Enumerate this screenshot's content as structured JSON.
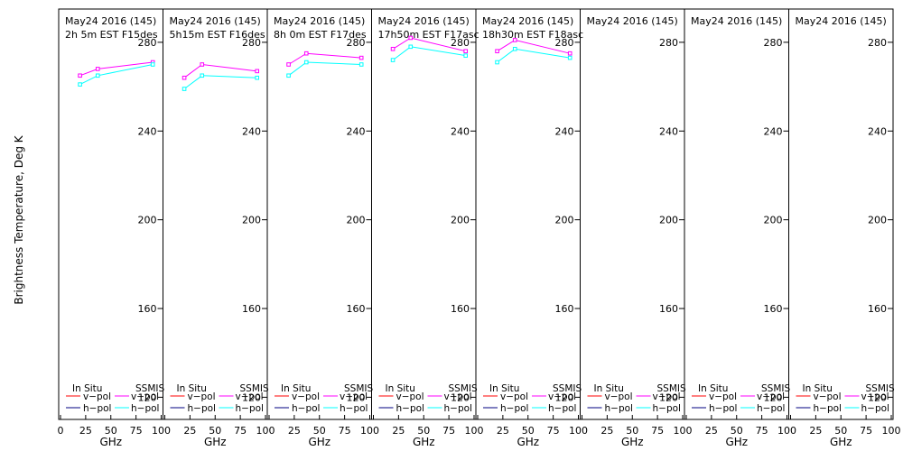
{
  "y_axis_label": "Brightness Temperature, Deg K",
  "chart_data": {
    "type": "line",
    "ylabel": "Brightness Temperature, Deg K",
    "xlabel": "GHz",
    "ylim": [
      110,
      295
    ],
    "xlim": [
      0,
      100
    ],
    "y_ticks": [
      120,
      160,
      200,
      240,
      280
    ],
    "x_ticks": [
      0,
      25,
      50,
      75,
      100
    ],
    "y_tick_labels": [
      "120",
      "160",
      "200",
      "240",
      "280"
    ],
    "x_tick_labels": [
      "0",
      "25",
      "50",
      "75",
      "100"
    ],
    "x_tick_labels_inner": [
      "25",
      "50",
      "75",
      "100"
    ],
    "grid": false,
    "legend": {
      "group_in_situ": "In Situ",
      "group_ssmis": "SSMIS",
      "v_label": "v−pol",
      "h_label": "h−pol",
      "colors": {
        "in_situ_v": "#ff0000",
        "in_situ_h": "#000080",
        "ssmis_v": "#ff00ff",
        "ssmis_h": "#00ffff"
      }
    },
    "panels": [
      {
        "date_line": "May24 2016 (145)",
        "time_line": "2h 5m  EST F15des",
        "series": [
          {
            "name": "v−pol",
            "group": "SSMIS",
            "x": [
              19.35,
              37.0,
              91.655
            ],
            "y": [
              265,
              268,
              271
            ]
          },
          {
            "name": "h−pol",
            "group": "SSMIS",
            "x": [
              19.35,
              37.0,
              91.655
            ],
            "y": [
              261,
              265,
              270
            ]
          }
        ]
      },
      {
        "date_line": "May24 2016 (145)",
        "time_line": "5h15m  EST F16des",
        "series": [
          {
            "name": "v−pol",
            "group": "SSMIS",
            "x": [
              19.35,
              37.0,
              91.655
            ],
            "y": [
              264,
              270,
              267
            ]
          },
          {
            "name": "h−pol",
            "group": "SSMIS",
            "x": [
              19.35,
              37.0,
              91.655
            ],
            "y": [
              259,
              265,
              264
            ]
          }
        ]
      },
      {
        "date_line": "May24 2016 (145)",
        "time_line": "8h 0m  EST F17des",
        "series": [
          {
            "name": "v−pol",
            "group": "SSMIS",
            "x": [
              19.35,
              37.0,
              91.655
            ],
            "y": [
              270,
              275,
              273
            ]
          },
          {
            "name": "h−pol",
            "group": "SSMIS",
            "x": [
              19.35,
              37.0,
              91.655
            ],
            "y": [
              265,
              271,
              270
            ]
          }
        ]
      },
      {
        "date_line": "May24 2016 (145)",
        "time_line": "17h50m  EST F17asc",
        "series": [
          {
            "name": "v−pol",
            "group": "SSMIS",
            "x": [
              19.35,
              37.0,
              91.655
            ],
            "y": [
              277,
              282,
              276
            ]
          },
          {
            "name": "h−pol",
            "group": "SSMIS",
            "x": [
              19.35,
              37.0,
              91.655
            ],
            "y": [
              272,
              278,
              274
            ]
          }
        ]
      },
      {
        "date_line": "May24 2016 (145)",
        "time_line": "18h30m  EST F18asc",
        "series": [
          {
            "name": "v−pol",
            "group": "SSMIS",
            "x": [
              19.35,
              37.0,
              91.655
            ],
            "y": [
              276,
              281,
              275
            ]
          },
          {
            "name": "h−pol",
            "group": "SSMIS",
            "x": [
              19.35,
              37.0,
              91.655
            ],
            "y": [
              271,
              277,
              273
            ]
          }
        ]
      },
      {
        "date_line": "May24 2016 (145)",
        "time_line": "",
        "series": []
      },
      {
        "date_line": "May24 2016 (145)",
        "time_line": "",
        "series": []
      },
      {
        "date_line": "May24 2016 (145)",
        "time_line": "",
        "series": []
      }
    ]
  }
}
